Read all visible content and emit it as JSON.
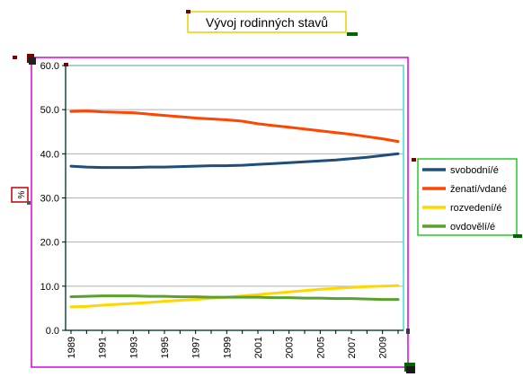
{
  "chart_data": {
    "type": "line",
    "title": "Vývoj rodinných stavů",
    "ylabel": "%",
    "xlabel": "",
    "ylim": [
      0,
      60
    ],
    "yticks": [
      "0.0",
      "10.0",
      "20.0",
      "30.0",
      "40.0",
      "50.0",
      "60.0"
    ],
    "x": [
      1989,
      1990,
      1991,
      1992,
      1993,
      1994,
      1995,
      1996,
      1997,
      1998,
      1999,
      2000,
      2001,
      2002,
      2003,
      2004,
      2005,
      2006,
      2007,
      2008,
      2009,
      2010
    ],
    "xtick_labels": [
      "1989",
      "1991",
      "1993",
      "1995",
      "1997",
      "1999",
      "2001",
      "2003",
      "2005",
      "2007",
      "2009"
    ],
    "grid": "horizontal",
    "legend_position": "right",
    "series": [
      {
        "name": "svobodní/é",
        "color": "#1f4e79",
        "values": [
          37.2,
          37.0,
          36.9,
          36.9,
          36.9,
          37.0,
          37.0,
          37.1,
          37.2,
          37.3,
          37.3,
          37.4,
          37.6,
          37.8,
          38.0,
          38.2,
          38.4,
          38.6,
          38.9,
          39.2,
          39.6,
          40.0
        ]
      },
      {
        "name": "ženatí/vdané",
        "color": "#ff4500",
        "values": [
          49.6,
          49.7,
          49.5,
          49.4,
          49.3,
          49.0,
          48.7,
          48.4,
          48.1,
          47.9,
          47.7,
          47.4,
          46.8,
          46.4,
          46.0,
          45.6,
          45.2,
          44.8,
          44.4,
          43.9,
          43.4,
          42.8
        ]
      },
      {
        "name": "rozvedení/é",
        "color": "#ffd700",
        "values": [
          5.3,
          5.4,
          5.7,
          5.9,
          6.1,
          6.3,
          6.6,
          6.8,
          7.0,
          7.3,
          7.5,
          7.8,
          8.1,
          8.4,
          8.7,
          9.0,
          9.3,
          9.5,
          9.7,
          9.9,
          10.0,
          10.1
        ]
      },
      {
        "name": "ovdovělí/é",
        "color": "#5aa02c",
        "values": [
          7.6,
          7.7,
          7.8,
          7.8,
          7.8,
          7.7,
          7.7,
          7.6,
          7.6,
          7.5,
          7.5,
          7.5,
          7.5,
          7.4,
          7.4,
          7.3,
          7.3,
          7.2,
          7.2,
          7.1,
          7.0,
          7.0
        ]
      }
    ]
  }
}
